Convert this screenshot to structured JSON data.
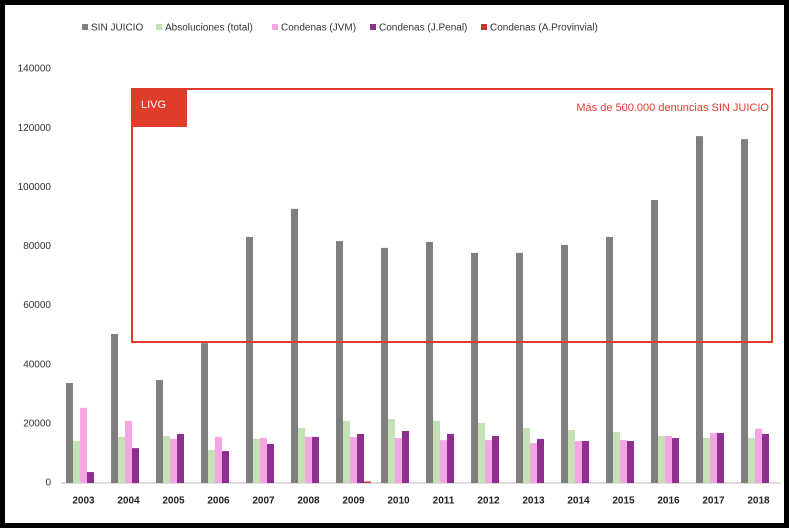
{
  "chart_data": {
    "type": "bar",
    "categories": [
      "2003",
      "2004",
      "2005",
      "2006",
      "2007",
      "2008",
      "2009",
      "2010",
      "2011",
      "2012",
      "2013",
      "2014",
      "2015",
      "2016",
      "2017",
      "2018"
    ],
    "series": [
      {
        "name": "SIN JUICIO",
        "color": "#7f7f7f",
        "values": [
          33800,
          50400,
          34800,
          47300,
          83200,
          92700,
          81800,
          79500,
          81500,
          77800,
          77800,
          80500,
          83200,
          95700,
          117300,
          116300
        ]
      },
      {
        "name": "Absoluciones (total)",
        "color": "#c5e0b4",
        "values": [
          14200,
          15600,
          15900,
          11200,
          14900,
          18600,
          21000,
          21600,
          21000,
          20300,
          18600,
          17900,
          17200,
          15900,
          15200,
          15200
        ]
      },
      {
        "name": "Condenas (JVM)",
        "color": "#f4a6e4",
        "values": [
          25400,
          21000,
          14900,
          15600,
          15200,
          15600,
          15600,
          15200,
          14500,
          14500,
          13500,
          14200,
          14500,
          15900,
          16900,
          18300
        ]
      },
      {
        "name": "Condenas (J.Penal)",
        "color": "#8e2f8f",
        "values": [
          3700,
          11800,
          16600,
          10800,
          13200,
          15600,
          16600,
          17600,
          16600,
          15900,
          14900,
          14200,
          14200,
          15200,
          16900,
          16600
        ]
      },
      {
        "name": "Condenas (A.Provinvial)",
        "color": "#c0392b",
        "values": [
          0,
          0,
          0,
          0,
          0,
          0,
          500,
          0,
          0,
          0,
          0,
          0,
          0,
          0,
          0,
          0
        ]
      }
    ],
    "ylim": [
      0,
      140000
    ],
    "yticks": [
      0,
      20000,
      40000,
      60000,
      80000,
      100000,
      120000,
      140000
    ],
    "grid": false,
    "annotation": {
      "tag": "LIVG",
      "text": "Más de 500.000 denuncias SIN JUICIO",
      "color": "#e03c2c"
    }
  }
}
